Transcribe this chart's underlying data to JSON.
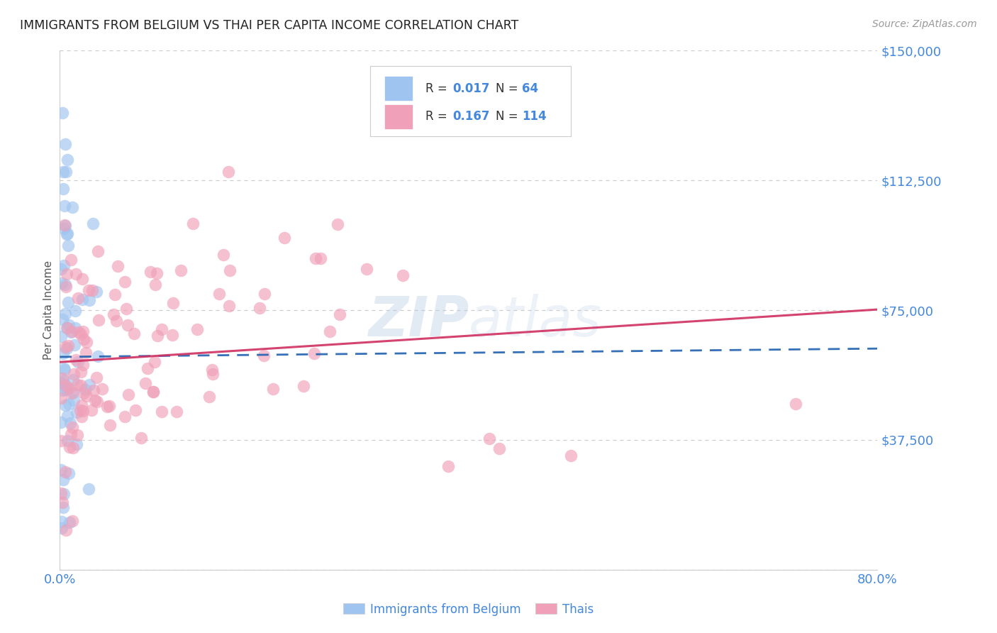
{
  "title": "IMMIGRANTS FROM BELGIUM VS THAI PER CAPITA INCOME CORRELATION CHART",
  "source": "Source: ZipAtlas.com",
  "ylabel": "Per Capita Income",
  "xlim": [
    0.0,
    0.8
  ],
  "ylim": [
    0,
    150000
  ],
  "yticks": [
    0,
    37500,
    75000,
    112500,
    150000
  ],
  "ytick_labels": [
    "",
    "$37,500",
    "$75,000",
    "$112,500",
    "$150,000"
  ],
  "legend_label1": "Immigrants from Belgium",
  "legend_label2": "Thais",
  "belgium_color": "#a0c4f0",
  "thais_color": "#f0a0b8",
  "belgium_line_color": "#2060b0",
  "thais_line_color": "#d03060",
  "background_color": "#ffffff",
  "grid_color": "#c8c8c8",
  "axis_color": "#aaaaaa",
  "title_color": "#222222",
  "label_color": "#4488dd",
  "watermark": "ZIPatlas",
  "belgium_R": 0.017,
  "belgium_N": 64,
  "thais_R": 0.167,
  "thais_N": 114,
  "bel_intercept": 61500,
  "bel_slope": 3000,
  "thai_intercept": 60000,
  "thai_slope": 19000
}
